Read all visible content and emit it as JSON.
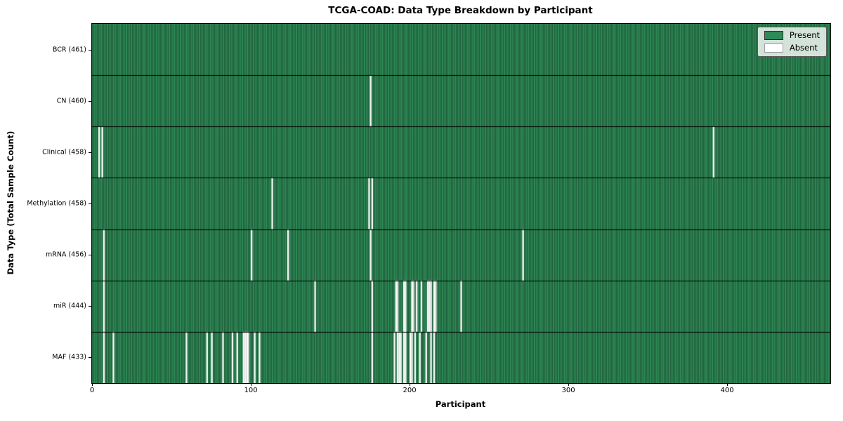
{
  "title": "TCGA-COAD: Data Type Breakdown by Participant",
  "colors": {
    "present": "#2E8B57",
    "bar_edge": "#17452b",
    "absent": "#ffffff",
    "absent_divider": "#b0b0b0",
    "row_separator": "#000000",
    "axis": "#000000"
  },
  "legend_items": [
    {
      "label": "Present",
      "color": "#2E8B57"
    },
    {
      "label": "Absent",
      "color": "#ffffff"
    }
  ],
  "chart_data": {
    "type": "heatmap",
    "title": "TCGA-COAD: Data Type Breakdown by Participant",
    "xlabel": "Participant",
    "ylabel": "Data Type (Total Sample Count)",
    "legend": [
      "Present",
      "Absent"
    ],
    "legend_position": "upper right",
    "grid": false,
    "xlim": [
      0,
      465
    ],
    "x_ticks": [
      0,
      100,
      200,
      300,
      400
    ],
    "n_participants": 461,
    "rows": [
      {
        "data_type": "BCR",
        "label": "BCR (461)",
        "present_count": 461,
        "absent_count": 0,
        "absent_participants": []
      },
      {
        "data_type": "CN",
        "label": "CN (460)",
        "present_count": 460,
        "absent_count": 1,
        "absent_participants": [
          175
        ]
      },
      {
        "data_type": "Clinical",
        "label": "Clinical (458)",
        "present_count": 458,
        "absent_count": 3,
        "absent_participants": [
          4,
          6,
          391
        ]
      },
      {
        "data_type": "Methylation",
        "label": "Methylation (458)",
        "present_count": 458,
        "absent_count": 3,
        "absent_participants": [
          113,
          174,
          176
        ]
      },
      {
        "data_type": "mRNA",
        "label": "mRNA (456)",
        "present_count": 456,
        "absent_count": 5,
        "absent_participants": [
          7,
          100,
          123,
          175,
          271
        ]
      },
      {
        "data_type": "miR",
        "label": "miR (444)",
        "present_count": 444,
        "absent_count": 17,
        "absent_participants": [
          7,
          140,
          176,
          191,
          192,
          196,
          197,
          201,
          202,
          204,
          207,
          211,
          212,
          213,
          215,
          216,
          232
        ]
      },
      {
        "data_type": "MAF",
        "label": "MAF (433)",
        "present_count": 433,
        "absent_count": 28,
        "absent_participants": [
          7,
          13,
          59,
          72,
          75,
          82,
          88,
          91,
          95,
          96,
          97,
          98,
          102,
          105,
          176,
          190,
          192,
          193,
          194,
          196,
          197,
          200,
          201,
          203,
          206,
          210,
          213,
          215
        ]
      }
    ]
  }
}
